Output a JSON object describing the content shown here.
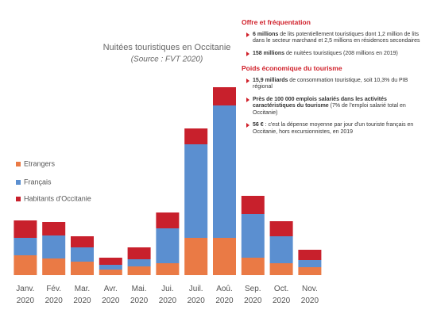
{
  "chart_data": {
    "type": "stacked_bar",
    "title": "Nuitées touristiques en Occitanie",
    "subtitle": "(Source : FVT 2020)",
    "categories": [
      "Janv.\n2020",
      "Fév.\n2020",
      "Mar.\n2020",
      "Avr.\n2020",
      "Mai.\n2020",
      "Jui.\n2020",
      "Juil.\n2020",
      "Aoû.\n2020",
      "Sep.\n2020",
      "Oct.\n2020",
      "Nov.\n2020"
    ],
    "series": [
      {
        "name": "Etrangers",
        "color": "#ea7a45",
        "values": [
          25,
          21,
          17,
          7,
          11,
          15,
          47,
          47,
          22,
          15,
          10
        ]
      },
      {
        "name": "Français",
        "color": "#5b8fd0",
        "values": [
          22,
          29,
          18,
          6,
          9,
          44,
          118,
          167,
          55,
          34,
          9
        ]
      },
      {
        "name": "Habitants d'Occitanie",
        "color": "#c8202c",
        "values": [
          22,
          17,
          14,
          9,
          15,
          20,
          20,
          23,
          23,
          19,
          13
        ]
      }
    ],
    "ylim": [
      0,
      240
    ]
  },
  "panel": {
    "sections": [
      {
        "heading": "Offre et fréquentation",
        "items": [
          {
            "bold": "6 millions",
            "text": " de lits potentiellement touristiques dont 1,2 million de lits dans le secteur marchand et 2,5 millions en résidences secondaires"
          },
          {
            "bold": "158 millions",
            "text": " de nuitées touristiques (208 millions en 2019)"
          }
        ]
      },
      {
        "heading": "Poids économique du tourisme",
        "items": [
          {
            "bold": "15,9 milliards",
            "text": " de consommation touristique, soit 10,3% du PIB régional"
          },
          {
            "bold": "Près de 100 000 emplois salariés dans les activités caractéristiques du tourisme",
            "text": " (7% de l'emploi salarié total en Occitanie)"
          },
          {
            "bold": "56 €",
            "text": " : c'est la dépense moyenne par jour d'un touriste français en Occitanie, hors excursionnistes, en 2019"
          }
        ]
      }
    ]
  }
}
